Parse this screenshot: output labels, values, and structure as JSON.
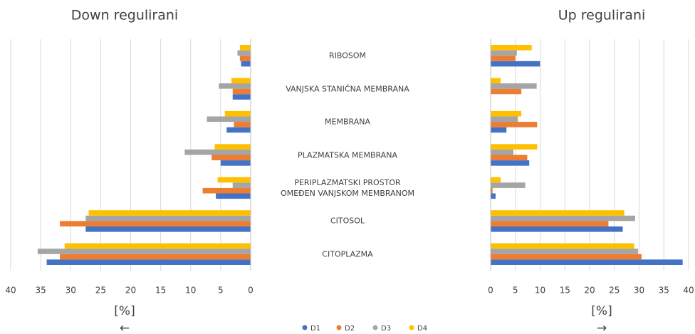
{
  "chart_data": [
    {
      "type": "bar",
      "orientation": "horizontal",
      "title": "Down regulirani",
      "xlabel": "[%]",
      "arrow": "←",
      "x_reversed": true,
      "xlim": [
        0,
        40
      ],
      "xticks": [
        0,
        5,
        10,
        15,
        20,
        25,
        30,
        35,
        40
      ],
      "grid": true,
      "legend": "bottom",
      "categories": [
        "RIBOSOM",
        "VANJSKA STANIČNA MEMBRANA",
        "MEMBRANA",
        "PLAZMATSKA MEMBRANA",
        "PERIPLAZMATSKI PROSTOR\nOMEĐEN VANJSKOM MEMBRANOM",
        "CITOSOL",
        "CITOPLAZMA"
      ],
      "series": [
        {
          "name": "D1",
          "color": "#4472c4",
          "values": [
            1.6,
            3.0,
            4.0,
            5.0,
            5.8,
            27.5,
            34
          ]
        },
        {
          "name": "D2",
          "color": "#ed7d31",
          "values": [
            1.8,
            3.0,
            2.8,
            6.5,
            8.0,
            31.8,
            31.8
          ]
        },
        {
          "name": "D3",
          "color": "#a5a5a5",
          "values": [
            2.2,
            5.3,
            7.3,
            11.0,
            3.0,
            27.5,
            35.5
          ]
        },
        {
          "name": "D4",
          "color": "#ffc000",
          "values": [
            1.8,
            3.2,
            4.3,
            6.0,
            5.5,
            27,
            31
          ]
        }
      ]
    },
    {
      "type": "bar",
      "orientation": "horizontal",
      "title": "Up regulirani",
      "xlabel": "[%]",
      "arrow": "→",
      "x_reversed": false,
      "xlim": [
        0,
        40
      ],
      "xticks": [
        0,
        5,
        10,
        15,
        20,
        25,
        30,
        35,
        40
      ],
      "grid": true,
      "series": [
        {
          "color": "#4472c4",
          "values": [
            10,
            0,
            3.2,
            7.8,
            1.0,
            26.7,
            38.8
          ]
        },
        {
          "color": "#ed7d31",
          "values": [
            5.0,
            6.2,
            9.4,
            7.4,
            0.4,
            23.8,
            30.5
          ]
        },
        {
          "color": "#a5a5a5",
          "values": [
            5.3,
            9.3,
            5.5,
            4.6,
            7.0,
            29.2,
            29.8
          ]
        },
        {
          "color": "#ffc000",
          "values": [
            8.3,
            2.0,
            6.2,
            9.4,
            2.0,
            27,
            29
          ]
        }
      ]
    }
  ]
}
